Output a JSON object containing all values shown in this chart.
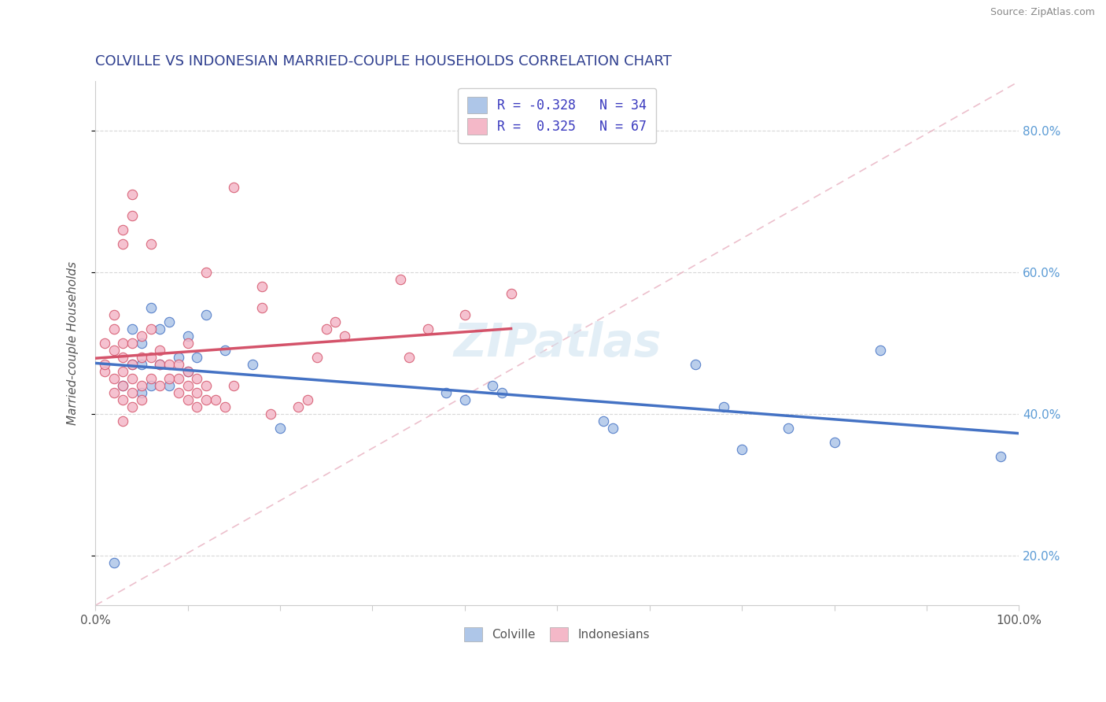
{
  "title": "COLVILLE VS INDONESIAN MARRIED-COUPLE HOUSEHOLDS CORRELATION CHART",
  "source": "Source: ZipAtlas.com",
  "ylabel": "Married-couple Households",
  "colville_color": "#aec6e8",
  "indonesian_color": "#f4b8c8",
  "colville_line_color": "#4472c4",
  "indonesian_line_color": "#d4536a",
  "trendline_color": "#f0b8c8",
  "watermark": "ZIPatlas",
  "colville_scatter": [
    [
      0.02,
      0.19
    ],
    [
      0.03,
      0.44
    ],
    [
      0.04,
      0.47
    ],
    [
      0.04,
      0.52
    ],
    [
      0.05,
      0.47
    ],
    [
      0.05,
      0.5
    ],
    [
      0.05,
      0.43
    ],
    [
      0.06,
      0.55
    ],
    [
      0.06,
      0.44
    ],
    [
      0.07,
      0.52
    ],
    [
      0.07,
      0.47
    ],
    [
      0.08,
      0.53
    ],
    [
      0.08,
      0.44
    ],
    [
      0.09,
      0.48
    ],
    [
      0.1,
      0.51
    ],
    [
      0.1,
      0.46
    ],
    [
      0.11,
      0.48
    ],
    [
      0.12,
      0.54
    ],
    [
      0.14,
      0.49
    ],
    [
      0.17,
      0.47
    ],
    [
      0.2,
      0.38
    ],
    [
      0.38,
      0.43
    ],
    [
      0.4,
      0.42
    ],
    [
      0.43,
      0.44
    ],
    [
      0.44,
      0.43
    ],
    [
      0.55,
      0.39
    ],
    [
      0.56,
      0.38
    ],
    [
      0.65,
      0.47
    ],
    [
      0.68,
      0.41
    ],
    [
      0.7,
      0.35
    ],
    [
      0.75,
      0.38
    ],
    [
      0.8,
      0.36
    ],
    [
      0.85,
      0.49
    ],
    [
      0.98,
      0.34
    ]
  ],
  "indonesian_scatter": [
    [
      0.01,
      0.46
    ],
    [
      0.01,
      0.47
    ],
    [
      0.01,
      0.5
    ],
    [
      0.02,
      0.43
    ],
    [
      0.02,
      0.45
    ],
    [
      0.02,
      0.49
    ],
    [
      0.02,
      0.52
    ],
    [
      0.02,
      0.54
    ],
    [
      0.03,
      0.39
    ],
    [
      0.03,
      0.42
    ],
    [
      0.03,
      0.44
    ],
    [
      0.03,
      0.46
    ],
    [
      0.03,
      0.48
    ],
    [
      0.03,
      0.5
    ],
    [
      0.03,
      0.64
    ],
    [
      0.03,
      0.66
    ],
    [
      0.04,
      0.41
    ],
    [
      0.04,
      0.43
    ],
    [
      0.04,
      0.45
    ],
    [
      0.04,
      0.47
    ],
    [
      0.04,
      0.5
    ],
    [
      0.04,
      0.68
    ],
    [
      0.04,
      0.71
    ],
    [
      0.05,
      0.42
    ],
    [
      0.05,
      0.44
    ],
    [
      0.05,
      0.48
    ],
    [
      0.05,
      0.51
    ],
    [
      0.06,
      0.45
    ],
    [
      0.06,
      0.48
    ],
    [
      0.06,
      0.52
    ],
    [
      0.06,
      0.64
    ],
    [
      0.07,
      0.44
    ],
    [
      0.07,
      0.47
    ],
    [
      0.07,
      0.49
    ],
    [
      0.08,
      0.45
    ],
    [
      0.08,
      0.47
    ],
    [
      0.09,
      0.43
    ],
    [
      0.09,
      0.45
    ],
    [
      0.09,
      0.47
    ],
    [
      0.1,
      0.42
    ],
    [
      0.1,
      0.44
    ],
    [
      0.1,
      0.46
    ],
    [
      0.1,
      0.5
    ],
    [
      0.11,
      0.41
    ],
    [
      0.11,
      0.43
    ],
    [
      0.11,
      0.45
    ],
    [
      0.12,
      0.42
    ],
    [
      0.12,
      0.44
    ],
    [
      0.12,
      0.6
    ],
    [
      0.13,
      0.42
    ],
    [
      0.14,
      0.41
    ],
    [
      0.15,
      0.44
    ],
    [
      0.15,
      0.72
    ],
    [
      0.18,
      0.55
    ],
    [
      0.18,
      0.58
    ],
    [
      0.19,
      0.4
    ],
    [
      0.22,
      0.41
    ],
    [
      0.23,
      0.42
    ],
    [
      0.24,
      0.48
    ],
    [
      0.25,
      0.52
    ],
    [
      0.26,
      0.53
    ],
    [
      0.27,
      0.51
    ],
    [
      0.33,
      0.59
    ],
    [
      0.34,
      0.48
    ],
    [
      0.36,
      0.52
    ],
    [
      0.4,
      0.54
    ],
    [
      0.45,
      0.57
    ]
  ],
  "xlim": [
    0.0,
    1.0
  ],
  "ylim": [
    0.13,
    0.87
  ],
  "ytick_vals": [
    0.2,
    0.4,
    0.6,
    0.8
  ],
  "ytick_labels": [
    "20.0%",
    "40.0%",
    "60.0%",
    "80.0%"
  ],
  "legend_R_blue": "R = -0.328",
  "legend_N_blue": "N = 34",
  "legend_R_pink": "R =  0.325",
  "legend_N_pink": "N = 67"
}
